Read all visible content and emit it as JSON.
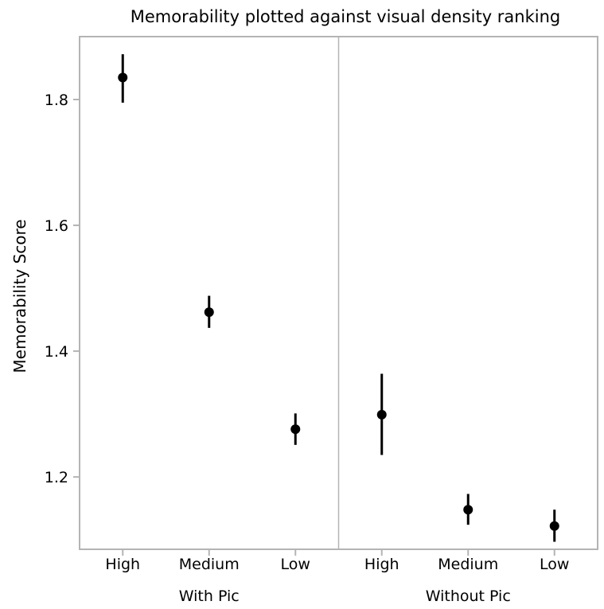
{
  "chart_data": {
    "type": "scatter",
    "title": "Memorability plotted against visual density ranking",
    "ylabel": "Memorability Score",
    "ylim": [
      1.085,
      1.9
    ],
    "yticks": [
      "1.2",
      "1.4",
      "1.6",
      "1.8"
    ],
    "groups": [
      {
        "label": "With Pic",
        "points": [
          {
            "category": "High",
            "y": 1.835,
            "low": 1.795,
            "high": 1.872
          },
          {
            "category": "Medium",
            "y": 1.462,
            "low": 1.437,
            "high": 1.488
          },
          {
            "category": "Low",
            "y": 1.276,
            "low": 1.251,
            "high": 1.301
          }
        ]
      },
      {
        "label": "Without Pic",
        "points": [
          {
            "category": "High",
            "y": 1.299,
            "low": 1.235,
            "high": 1.364
          },
          {
            "category": "Medium",
            "y": 1.148,
            "low": 1.124,
            "high": 1.173
          },
          {
            "category": "Low",
            "y": 1.122,
            "low": 1.097,
            "high": 1.148
          }
        ]
      }
    ],
    "grid": false,
    "colors": {
      "marker": "#000000",
      "frame": "#b4b4b4"
    }
  }
}
